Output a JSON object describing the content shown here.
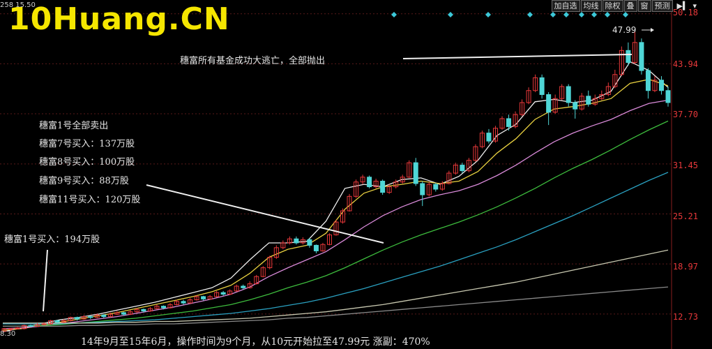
{
  "watermark": {
    "text": "10Huang.CN",
    "color": "#f5e600"
  },
  "toolbar": {
    "buttons": [
      "加自选",
      "均线",
      "除权",
      "叠",
      "窗",
      "预测"
    ],
    "icons": [
      "next-page-icon",
      "chevron-down-icon"
    ]
  },
  "top_left_label": "258 15.50",
  "left_edge_label": "8.30",
  "annotations": {
    "top": "穗富所有基金成功大逃亡，全部抛出",
    "block": [
      "穗富1号全部卖出",
      "穗富7号买入：137万股",
      "穗富8号买入：100万股",
      "穗富9号买入：88万股",
      "穗富11号买入：120万股"
    ],
    "buy1": "穗富1号买入：194万股",
    "peak": "47.99",
    "footer": "14年9月至15年6月，操作时间为9个月，从10元开始拉至47.99元  涨副：470%"
  },
  "colors": {
    "background": "#000000",
    "up": "#e8383a",
    "down": "#4fd6d6",
    "grid": "#5a1a1a",
    "ma_white": "#eeeeee",
    "ma_yellow": "#e8d040",
    "ma_pink": "#d98ad9",
    "ma_green": "#3dbb3d",
    "ma_blue": "#2aa0c0",
    "ma_gray1": "#c8c8b0",
    "ma_gray2": "#8a8a8a"
  },
  "chart_data": {
    "type": "candlestick",
    "title": "",
    "price_axis": {
      "ticks": [
        12.73,
        18.97,
        25.21,
        31.45,
        37.7,
        43.94,
        50.18
      ],
      "range": [
        10.8,
        51.2
      ],
      "position": "right"
    },
    "diamond_markers": 10,
    "candles": [
      [
        10.6,
        10.9,
        10.5,
        11.0
      ],
      [
        10.8,
        10.9,
        10.6,
        11.0
      ],
      [
        10.9,
        11.0,
        10.8,
        11.1
      ],
      [
        10.9,
        11.3,
        10.8,
        11.4
      ],
      [
        11.3,
        11.2,
        11.1,
        11.4
      ],
      [
        11.2,
        11.4,
        11.1,
        11.6
      ],
      [
        11.4,
        11.5,
        11.3,
        11.7
      ],
      [
        11.5,
        11.9,
        11.4,
        12.0
      ],
      [
        11.9,
        11.7,
        11.6,
        12.0
      ],
      [
        11.7,
        11.9,
        11.6,
        12.1
      ],
      [
        11.9,
        12.3,
        11.8,
        12.4
      ],
      [
        12.3,
        12.1,
        11.9,
        12.4
      ],
      [
        12.1,
        12.4,
        12.0,
        12.6
      ],
      [
        12.4,
        12.3,
        12.1,
        12.5
      ],
      [
        12.3,
        12.6,
        12.2,
        12.8
      ],
      [
        12.6,
        12.4,
        12.2,
        12.7
      ],
      [
        12.4,
        12.7,
        12.3,
        12.9
      ],
      [
        12.7,
        12.9,
        12.6,
        13.1
      ],
      [
        12.9,
        12.7,
        12.5,
        13.0
      ],
      [
        12.7,
        13.0,
        12.6,
        13.2
      ],
      [
        13.0,
        13.3,
        12.9,
        13.5
      ],
      [
        13.3,
        13.1,
        12.9,
        13.4
      ],
      [
        13.1,
        13.4,
        13.0,
        13.6
      ],
      [
        13.4,
        13.7,
        13.3,
        13.9
      ],
      [
        13.7,
        13.5,
        13.3,
        13.8
      ],
      [
        13.5,
        13.9,
        13.4,
        14.1
      ],
      [
        13.9,
        14.3,
        13.8,
        14.5
      ],
      [
        14.3,
        14.1,
        13.9,
        14.5
      ],
      [
        14.1,
        14.5,
        14.0,
        14.7
      ],
      [
        14.5,
        14.9,
        14.4,
        15.1
      ],
      [
        14.9,
        14.6,
        14.4,
        15.0
      ],
      [
        14.6,
        14.9,
        14.5,
        15.1
      ],
      [
        14.9,
        15.4,
        14.8,
        15.6
      ],
      [
        15.4,
        15.2,
        15.0,
        15.6
      ],
      [
        15.2,
        15.6,
        15.1,
        15.8
      ],
      [
        15.6,
        16.2,
        15.5,
        16.4
      ],
      [
        16.2,
        16.0,
        15.8,
        16.4
      ],
      [
        16.0,
        16.5,
        15.9,
        16.8
      ],
      [
        16.5,
        17.4,
        16.4,
        17.6
      ],
      [
        17.4,
        18.5,
        17.3,
        18.7
      ],
      [
        18.5,
        19.8,
        18.3,
        20.0
      ],
      [
        19.8,
        21.0,
        19.6,
        21.3
      ],
      [
        21.0,
        21.6,
        20.8,
        21.9
      ],
      [
        21.6,
        22.1,
        21.4,
        22.4
      ],
      [
        22.1,
        21.6,
        21.4,
        22.4
      ],
      [
        21.6,
        22.0,
        21.4,
        22.3
      ],
      [
        22.0,
        21.3,
        21.0,
        22.2
      ],
      [
        21.3,
        20.6,
        20.3,
        21.4
      ],
      [
        20.6,
        21.4,
        20.5,
        21.6
      ],
      [
        21.4,
        22.6,
        21.3,
        22.8
      ],
      [
        22.6,
        24.2,
        22.5,
        24.5
      ],
      [
        24.2,
        25.6,
        24.0,
        25.9
      ],
      [
        25.6,
        27.4,
        25.5,
        27.7
      ],
      [
        27.4,
        29.2,
        27.2,
        29.5
      ],
      [
        29.2,
        29.8,
        28.9,
        30.1
      ],
      [
        29.8,
        28.6,
        28.4,
        30.0
      ],
      [
        28.6,
        29.3,
        28.4,
        29.6
      ],
      [
        29.3,
        27.9,
        27.6,
        29.5
      ],
      [
        27.9,
        28.6,
        27.7,
        28.9
      ],
      [
        28.6,
        29.2,
        28.4,
        29.5
      ],
      [
        29.2,
        29.8,
        29.0,
        30.1
      ],
      [
        29.8,
        31.6,
        29.7,
        31.9
      ],
      [
        31.6,
        29.0,
        28.7,
        32.2
      ],
      [
        29.0,
        27.6,
        26.2,
        29.3
      ],
      [
        27.6,
        28.9,
        27.4,
        29.2
      ],
      [
        28.9,
        28.3,
        28.0,
        29.1
      ],
      [
        28.3,
        29.0,
        28.1,
        29.3
      ],
      [
        29.0,
        30.3,
        28.9,
        30.6
      ],
      [
        30.3,
        31.3,
        30.1,
        31.6
      ],
      [
        31.3,
        30.6,
        30.3,
        31.6
      ],
      [
        30.6,
        31.9,
        30.4,
        32.2
      ],
      [
        31.9,
        33.6,
        31.7,
        33.9
      ],
      [
        33.6,
        35.3,
        33.4,
        35.6
      ],
      [
        35.3,
        34.3,
        34.0,
        35.8
      ],
      [
        34.3,
        35.9,
        34.1,
        36.2
      ],
      [
        35.9,
        37.1,
        35.7,
        37.4
      ],
      [
        37.1,
        36.1,
        35.6,
        37.6
      ],
      [
        36.1,
        37.6,
        35.9,
        38.0
      ],
      [
        37.6,
        39.1,
        37.4,
        39.5
      ],
      [
        39.1,
        40.6,
        38.9,
        41.0
      ],
      [
        40.6,
        42.2,
        40.4,
        42.6
      ],
      [
        42.2,
        40.1,
        39.6,
        42.6
      ],
      [
        40.1,
        37.9,
        36.3,
        40.4
      ],
      [
        37.9,
        39.6,
        37.7,
        40.1
      ],
      [
        39.6,
        41.1,
        39.4,
        41.4
      ],
      [
        41.1,
        39.1,
        38.6,
        41.4
      ],
      [
        39.1,
        38.3,
        37.1,
        39.4
      ],
      [
        38.3,
        39.9,
        38.1,
        40.3
      ],
      [
        39.9,
        38.9,
        38.6,
        40.6
      ],
      [
        38.9,
        39.6,
        38.7,
        40.1
      ],
      [
        39.6,
        40.1,
        39.4,
        40.6
      ],
      [
        40.1,
        41.1,
        39.9,
        41.6
      ],
      [
        41.1,
        42.6,
        40.9,
        43.2
      ],
      [
        42.6,
        45.6,
        42.4,
        46.1
      ],
      [
        45.6,
        44.1,
        43.7,
        46.6
      ],
      [
        44.1,
        46.6,
        43.9,
        47.99
      ],
      [
        46.6,
        43.1,
        42.6,
        47.1
      ],
      [
        43.1,
        40.6,
        39.6,
        43.4
      ],
      [
        40.6,
        41.9,
        40.4,
        42.4
      ],
      [
        41.9,
        40.6,
        40.1,
        42.4
      ],
      [
        40.6,
        39.1,
        38.6,
        41.1
      ]
    ],
    "moving_averages": [
      {
        "color": "#eeeeee",
        "values": [
          10.5,
          11.0,
          11.5,
          12.0,
          12.3,
          12.7,
          13.2,
          13.7,
          14.2,
          14.8,
          15.4,
          16.0,
          17.2,
          19.5,
          21.6,
          21.6,
          21.8,
          24.3,
          28.4,
          28.9,
          28.6,
          29.5,
          29.7,
          28.9,
          29.9,
          31.9,
          35.0,
          36.4,
          39.2,
          39.5,
          39.1,
          39.4,
          40.5,
          44.2,
          43.1,
          41.0
        ]
      },
      {
        "color": "#e8d040",
        "values": [
          10.7,
          10.9,
          11.3,
          11.7,
          12.1,
          12.5,
          12.9,
          13.4,
          13.9,
          14.4,
          14.9,
          15.5,
          16.3,
          17.8,
          19.8,
          20.8,
          21.3,
          22.8,
          25.8,
          27.8,
          28.6,
          28.9,
          29.3,
          29.0,
          29.3,
          30.5,
          32.8,
          34.6,
          37.0,
          38.3,
          38.6,
          39.0,
          39.6,
          41.5,
          42.0,
          41.2
        ]
      },
      {
        "color": "#d98ad9",
        "values": [
          10.9,
          11.0,
          11.2,
          11.5,
          11.8,
          12.1,
          12.4,
          12.8,
          13.2,
          13.6,
          14.1,
          14.6,
          15.2,
          16.1,
          17.4,
          18.5,
          19.5,
          20.5,
          22.0,
          23.6,
          25.0,
          26.1,
          27.0,
          27.6,
          28.1,
          28.9,
          30.0,
          31.3,
          32.8,
          34.2,
          35.3,
          36.2,
          37.0,
          38.1,
          39.0,
          39.4
        ]
      },
      {
        "color": "#3dbb3d",
        "values": [
          11.2,
          11.2,
          11.3,
          11.4,
          11.6,
          11.8,
          12.0,
          12.2,
          12.5,
          12.8,
          13.1,
          13.5,
          13.9,
          14.5,
          15.2,
          16.0,
          16.7,
          17.5,
          18.5,
          19.6,
          20.7,
          21.7,
          22.6,
          23.4,
          24.2,
          25.1,
          26.1,
          27.2,
          28.4,
          29.7,
          30.9,
          32.0,
          33.2,
          34.5,
          35.7,
          36.8
        ]
      },
      {
        "color": "#2aa0c0",
        "values": [
          11.5,
          11.5,
          11.5,
          11.5,
          11.6,
          11.7,
          11.8,
          11.9,
          12.0,
          12.2,
          12.4,
          12.6,
          12.8,
          13.1,
          13.4,
          13.8,
          14.2,
          14.7,
          15.3,
          15.9,
          16.6,
          17.3,
          18.0,
          18.7,
          19.5,
          20.3,
          21.1,
          22.0,
          23.0,
          24.0,
          25.0,
          26.1,
          27.2,
          28.3,
          29.4,
          30.4
        ]
      },
      {
        "color": "#c8c8b0",
        "values": [
          11.6,
          11.6,
          11.6,
          11.6,
          11.6,
          11.6,
          11.7,
          11.7,
          11.8,
          11.8,
          11.9,
          12.0,
          12.1,
          12.2,
          12.4,
          12.6,
          12.8,
          13.0,
          13.3,
          13.6,
          13.9,
          14.3,
          14.7,
          15.1,
          15.5,
          15.9,
          16.3,
          16.7,
          17.2,
          17.7,
          18.2,
          18.7,
          19.2,
          19.7,
          20.2,
          20.7
        ]
      },
      {
        "color": "#8a8a8a",
        "values": [
          11.2,
          11.2,
          11.2,
          11.2,
          11.3,
          11.3,
          11.4,
          11.4,
          11.5,
          11.5,
          11.6,
          11.7,
          11.8,
          11.9,
          12.0,
          12.2,
          12.3,
          12.5,
          12.7,
          12.9,
          13.1,
          13.3,
          13.5,
          13.7,
          13.9,
          14.1,
          14.3,
          14.5,
          14.7,
          14.9,
          15.1,
          15.3,
          15.5,
          15.7,
          15.9,
          16.1
        ]
      }
    ]
  }
}
